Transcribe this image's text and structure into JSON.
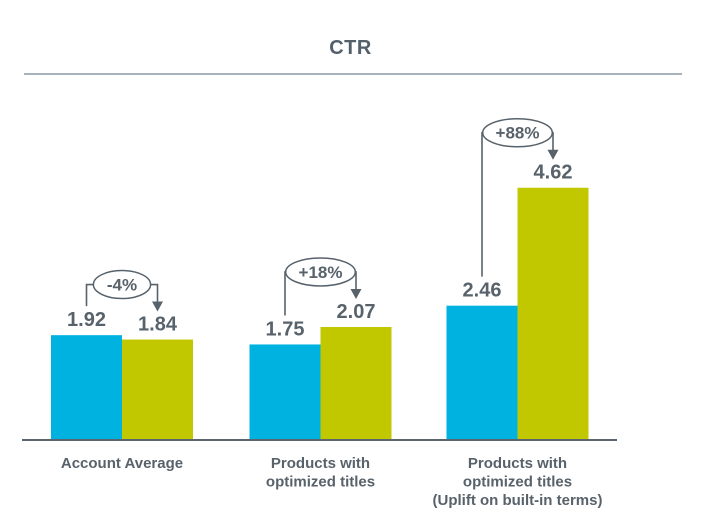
{
  "chart_data": {
    "type": "bar",
    "title": "CTR",
    "xlabel": "",
    "ylabel": "",
    "ylim": [
      0,
      5
    ],
    "grid": false,
    "legend": "none",
    "categories": [
      "Account Average",
      "Products with\noptimized titles",
      "Products with\noptimized titles\n(Uplift on built-in terms)"
    ],
    "series": [
      {
        "color": "#00b2e0",
        "values": [
          1.92,
          1.75,
          2.46
        ]
      },
      {
        "color": "#c2c800",
        "values": [
          1.84,
          2.07,
          4.62
        ]
      }
    ],
    "value_labels": [
      [
        "1.92",
        "1.84"
      ],
      [
        "1.75",
        "2.07"
      ],
      [
        "2.46",
        "4.62"
      ]
    ],
    "annotations": [
      "-4%",
      "+18%",
      "+88%"
    ]
  },
  "palette": {
    "bar_before": "#00b2e0",
    "bar_after": "#c2c800",
    "text": "#58626b",
    "axis": "#5a6570",
    "divider": "#a9b3bb"
  }
}
